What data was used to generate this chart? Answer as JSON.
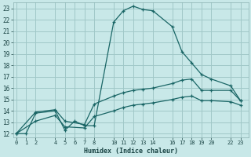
{
  "xlabel": "Humidex (Indice chaleur)",
  "bg_color": "#c8e8e8",
  "grid_color": "#a0c8c8",
  "line_color": "#1a6666",
  "xticks": [
    0,
    1,
    2,
    4,
    5,
    6,
    7,
    8,
    10,
    11,
    12,
    13,
    14,
    16,
    17,
    18,
    19,
    20,
    22,
    23
  ],
  "yticks": [
    12,
    13,
    14,
    15,
    16,
    17,
    18,
    19,
    20,
    21,
    22,
    23
  ],
  "xlim": [
    -0.3,
    23.8
  ],
  "ylim": [
    11.7,
    23.5
  ],
  "line1_x": [
    0,
    1,
    2,
    4,
    5,
    6,
    7,
    8,
    10,
    11,
    12,
    13,
    14,
    16,
    17,
    18,
    19,
    20,
    22,
    23
  ],
  "line1_y": [
    12,
    12,
    13.8,
    14.0,
    12.3,
    13.1,
    12.7,
    12.7,
    21.8,
    22.8,
    23.2,
    22.9,
    22.8,
    21.4,
    19.2,
    18.2,
    17.2,
    16.8,
    16.2,
    14.9
  ],
  "line2_x": [
    0,
    2,
    4,
    5,
    7,
    8,
    10,
    11,
    12,
    13,
    14,
    16,
    17,
    18,
    19,
    20,
    22,
    23
  ],
  "line2_y": [
    12.0,
    13.9,
    14.1,
    13.1,
    12.8,
    14.6,
    15.3,
    15.6,
    15.8,
    15.9,
    16.0,
    16.4,
    16.7,
    16.8,
    15.8,
    15.8,
    15.8,
    14.9
  ],
  "line3_x": [
    0,
    2,
    4,
    5,
    7,
    8,
    10,
    11,
    12,
    13,
    14,
    16,
    17,
    18,
    19,
    20,
    22,
    23
  ],
  "line3_y": [
    12.0,
    13.1,
    13.6,
    12.6,
    12.5,
    13.5,
    14.0,
    14.3,
    14.5,
    14.6,
    14.7,
    15.0,
    15.2,
    15.3,
    14.9,
    14.9,
    14.8,
    14.5
  ]
}
